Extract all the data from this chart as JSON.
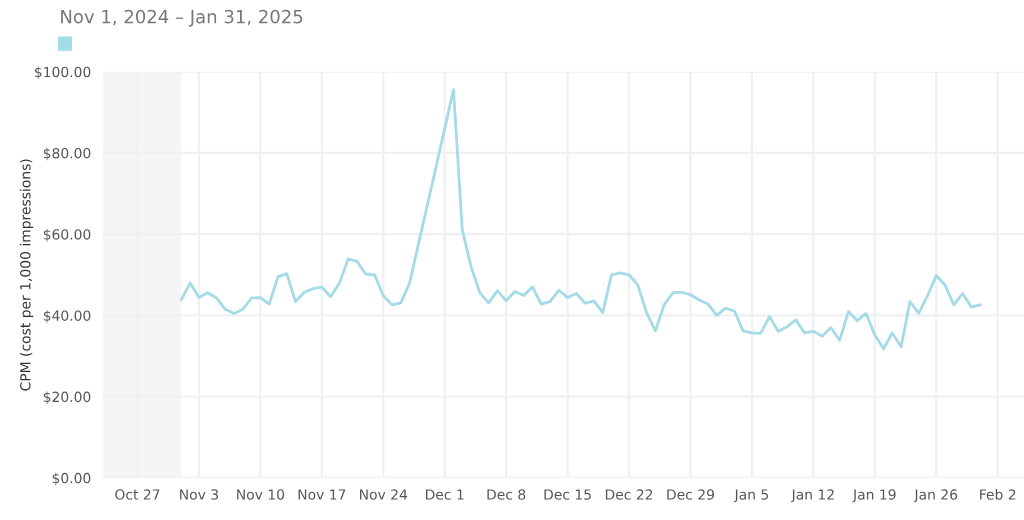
{
  "chart_data": {
    "type": "line",
    "title": "Nov 1, 2024 – Jan 31, 2025",
    "ylabel": "CPM (cost per 1,000 impressions)",
    "x": [
      "2024-11-01",
      "2024-11-02",
      "2024-11-03",
      "2024-11-04",
      "2024-11-05",
      "2024-11-06",
      "2024-11-07",
      "2024-11-08",
      "2024-11-09",
      "2024-11-10",
      "2024-11-11",
      "2024-11-12",
      "2024-11-13",
      "2024-11-14",
      "2024-11-15",
      "2024-11-16",
      "2024-11-17",
      "2024-11-18",
      "2024-11-19",
      "2024-11-20",
      "2024-11-21",
      "2024-11-22",
      "2024-11-23",
      "2024-11-24",
      "2024-11-25",
      "2024-11-26",
      "2024-11-27",
      "2024-11-28",
      "2024-11-29",
      "2024-11-30",
      "2024-12-01",
      "2024-12-02",
      "2024-12-03",
      "2024-12-04",
      "2024-12-05",
      "2024-12-06",
      "2024-12-07",
      "2024-12-08",
      "2024-12-09",
      "2024-12-10",
      "2024-12-11",
      "2024-12-12",
      "2024-12-13",
      "2024-12-14",
      "2024-12-15",
      "2024-12-16",
      "2024-12-17",
      "2024-12-18",
      "2024-12-19",
      "2024-12-20",
      "2024-12-21",
      "2024-12-22",
      "2024-12-23",
      "2024-12-24",
      "2024-12-25",
      "2024-12-26",
      "2024-12-27",
      "2024-12-28",
      "2024-12-29",
      "2024-12-30",
      "2024-12-31",
      "2025-01-01",
      "2025-01-02",
      "2025-01-03",
      "2025-01-04",
      "2025-01-05",
      "2025-01-06",
      "2025-01-07",
      "2025-01-08",
      "2025-01-09",
      "2025-01-10",
      "2025-01-11",
      "2025-01-12",
      "2025-01-13",
      "2025-01-14",
      "2025-01-15",
      "2025-01-16",
      "2025-01-17",
      "2025-01-18",
      "2025-01-19",
      "2025-01-20",
      "2025-01-21",
      "2025-01-22",
      "2025-01-23",
      "2025-01-24",
      "2025-01-25",
      "2025-01-26",
      "2025-01-27",
      "2025-01-28",
      "2025-01-29",
      "2025-01-30",
      "2025-01-31"
    ],
    "series": [
      {
        "color": "#a3dbe6",
        "values": [
          43.9,
          48.0,
          44.4,
          45.6,
          44.3,
          41.5,
          40.5,
          41.5,
          44.3,
          44.4,
          42.8,
          49.5,
          50.3,
          43.4,
          45.7,
          46.6,
          47.0,
          44.6,
          47.9,
          53.9,
          53.3,
          50.2,
          50.0,
          44.9,
          42.6,
          43.1,
          48.0,
          57.5,
          67.0,
          76.5,
          86.0,
          95.6,
          61.1,
          52.0,
          45.6,
          43.1,
          46.1,
          43.6,
          45.9,
          44.9,
          47.0,
          42.8,
          43.4,
          46.2,
          44.4,
          45.4,
          43.0,
          43.6,
          40.7,
          50.0,
          50.5,
          50.0,
          47.5,
          40.7,
          36.2,
          42.6,
          45.6,
          45.7,
          45.1,
          43.8,
          42.8,
          40.0,
          41.8,
          41.1,
          36.2,
          35.7,
          35.6,
          39.7,
          36.1,
          37.2,
          38.9,
          35.7,
          36.1,
          34.9,
          37.0,
          33.9,
          41.0,
          38.7,
          40.5,
          35.2,
          31.8,
          35.7,
          32.3,
          43.4,
          40.5,
          44.8,
          49.8,
          47.5,
          42.6,
          45.4,
          42.1,
          42.6
        ]
      }
    ],
    "xlim": [
      "2024-10-23",
      "2025-02-05"
    ],
    "xticks": [
      {
        "value": "2024-10-27",
        "label": "Oct 27"
      },
      {
        "value": "2024-11-03",
        "label": "Nov 3"
      },
      {
        "value": "2024-11-10",
        "label": "Nov 10"
      },
      {
        "value": "2024-11-17",
        "label": "Nov 17"
      },
      {
        "value": "2024-11-24",
        "label": "Nov 24"
      },
      {
        "value": "2024-12-01",
        "label": "Dec 1"
      },
      {
        "value": "2024-12-08",
        "label": "Dec 8"
      },
      {
        "value": "2024-12-15",
        "label": "Dec 15"
      },
      {
        "value": "2024-12-22",
        "label": "Dec 22"
      },
      {
        "value": "2024-12-29",
        "label": "Dec 29"
      },
      {
        "value": "2025-01-05",
        "label": "Jan 5"
      },
      {
        "value": "2025-01-12",
        "label": "Jan 12"
      },
      {
        "value": "2025-01-19",
        "label": "Jan 19"
      },
      {
        "value": "2025-01-26",
        "label": "Jan 26"
      },
      {
        "value": "2025-02-02",
        "label": "Feb 2"
      }
    ],
    "ylim": [
      0,
      100
    ],
    "yticks": [
      {
        "value": 0,
        "label": "$0.00"
      },
      {
        "value": 20,
        "label": "$20.00"
      },
      {
        "value": 40,
        "label": "$40.00"
      },
      {
        "value": 60,
        "label": "$60.00"
      },
      {
        "value": 80,
        "label": "$80.00"
      },
      {
        "value": 100,
        "label": "$100.00"
      }
    ],
    "bands": [
      {
        "axis": "x",
        "from": "2024-10-23",
        "to": "2024-11-01",
        "color": "#f4f5f7"
      }
    ],
    "grid": true,
    "legend": false,
    "marker": "none",
    "line_style": "solid"
  }
}
